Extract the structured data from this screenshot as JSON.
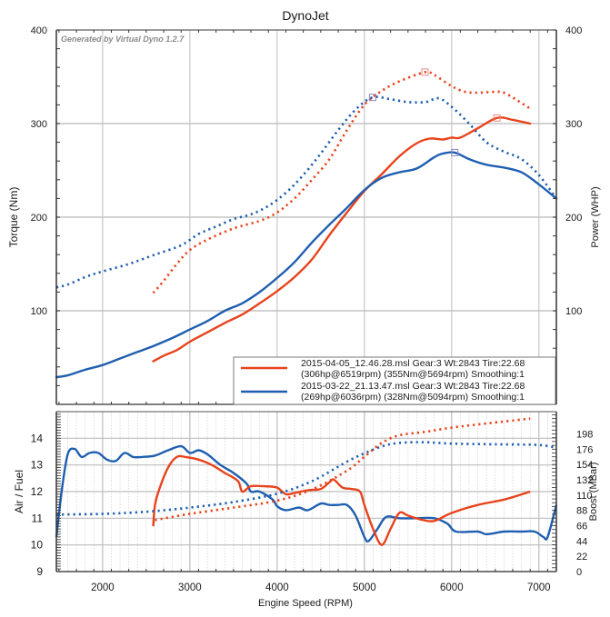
{
  "chart_data": [
    {
      "type": "line",
      "title": "DynoJet",
      "watermark": "Generated by Virtual Dyno 1.2.7",
      "xlabel": "",
      "ylabel": "Torque (Nm)",
      "y2label": "Power (WHP)",
      "xlim": [
        1470,
        7200
      ],
      "ylim": [
        0,
        400
      ],
      "y2lim": [
        0,
        400
      ],
      "x_ticks": [
        2000,
        3000,
        4000,
        5000,
        6000,
        7000
      ],
      "y_ticks": [
        100,
        200,
        300,
        400
      ],
      "y2_ticks": [
        100,
        200,
        300,
        400
      ],
      "grid": true,
      "legend_placement": "bottom-right",
      "legend": [
        {
          "line1": "2015-04-05_12.46.28.msl Gear:3 Wt:2843 Tire:22.68",
          "line2": "(306hp@6519rpm) (355Nm@5694rpm) Smoothing:1",
          "color": "#e8431c"
        },
        {
          "line1": "2015-03-22_21.13.47.msl Gear:3 Wt:2843 Tire:22.68",
          "line2": "(269hp@6036rpm) (328Nm@5094rpm) Smoothing:1",
          "color": "#1f5fb0"
        }
      ],
      "series": [
        {
          "name": "2015-04-05 Torque (Nm)",
          "color": "#e8431c",
          "style": "dotted",
          "axis": "left",
          "x": [
            2580,
            2700,
            2850,
            3000,
            3200,
            3500,
            3800,
            4000,
            4200,
            4400,
            4600,
            4800,
            5000,
            5200,
            5400,
            5694,
            5800,
            6000,
            6150,
            6300,
            6500,
            6600,
            6750,
            6900
          ],
          "y": [
            119,
            132,
            150,
            165,
            176,
            188,
            196,
            205,
            220,
            240,
            262,
            293,
            320,
            335,
            345,
            355,
            352,
            340,
            334,
            333,
            334,
            333,
            325,
            316
          ],
          "peak": {
            "x": 5694,
            "y": 355
          }
        },
        {
          "name": "2015-03-22 Torque (Nm)",
          "color": "#1f5fb0",
          "style": "dotted",
          "axis": "left",
          "x": [
            1470,
            1600,
            1800,
            2000,
            2300,
            2600,
            2900,
            3100,
            3300,
            3500,
            3700,
            3900,
            4100,
            4300,
            4500,
            4700,
            4900,
            5094,
            5300,
            5500,
            5700,
            5850,
            6000,
            6200,
            6400,
            6600,
            6800,
            7000,
            7200
          ],
          "y": [
            125,
            128,
            136,
            142,
            150,
            160,
            170,
            182,
            190,
            198,
            203,
            212,
            226,
            245,
            268,
            293,
            315,
            328,
            326,
            323,
            323,
            327,
            318,
            300,
            280,
            270,
            262,
            245,
            220
          ],
          "peak": {
            "x": 5094,
            "y": 328
          }
        },
        {
          "name": "2015-04-05 Power (WHP)",
          "color": "#e8431c",
          "style": "solid",
          "axis": "right",
          "x": [
            2580,
            2700,
            2850,
            3000,
            3200,
            3400,
            3600,
            3800,
            4000,
            4200,
            4400,
            4600,
            4800,
            5000,
            5200,
            5400,
            5600,
            5750,
            5900,
            6000,
            6100,
            6300,
            6519,
            6700,
            6900
          ],
          "y": [
            46,
            52,
            58,
            67,
            77,
            87,
            96,
            108,
            121,
            136,
            155,
            181,
            205,
            228,
            246,
            265,
            279,
            284,
            283,
            285,
            285,
            295,
            306,
            304,
            300
          ],
          "peak": {
            "x": 6519,
            "y": 306
          }
        },
        {
          "name": "2015-03-22 Power (WHP)",
          "color": "#1f5fb0",
          "style": "solid",
          "axis": "right",
          "x": [
            1470,
            1600,
            1800,
            2000,
            2200,
            2400,
            2600,
            2800,
            3000,
            3200,
            3400,
            3600,
            3800,
            4000,
            4200,
            4400,
            4600,
            4800,
            5000,
            5200,
            5400,
            5600,
            5800,
            5900,
            6036,
            6200,
            6400,
            6600,
            6800,
            7000,
            7200
          ],
          "y": [
            29,
            31,
            37,
            42,
            49,
            56,
            63,
            71,
            80,
            89,
            100,
            108,
            120,
            135,
            152,
            173,
            192,
            210,
            229,
            242,
            248,
            252,
            264,
            268,
            269,
            262,
            256,
            253,
            248,
            235,
            220
          ],
          "peak": {
            "x": 6036,
            "y": 269
          }
        }
      ]
    },
    {
      "type": "line",
      "title": "",
      "xlabel": "Engine Speed (RPM)",
      "ylabel": "Air / Fuel",
      "y2label": "Boost (MBar)",
      "xlim": [
        1470,
        7200
      ],
      "ylim": [
        9,
        15
      ],
      "y2lim": [
        0,
        230
      ],
      "x_ticks": [
        2000,
        3000,
        4000,
        5000,
        6000,
        7000
      ],
      "y_ticks": [
        9,
        10,
        11,
        12,
        13,
        14
      ],
      "y2_ticks": [
        0,
        22,
        44,
        66,
        88,
        110,
        132,
        154,
        176,
        198
      ],
      "grid": true,
      "series": [
        {
          "name": "2015-03-22 Air/Fuel",
          "color": "#1f5fb0",
          "style": "solid",
          "axis": "left",
          "x": [
            1470,
            1530,
            1600,
            1680,
            1760,
            1850,
            1950,
            2050,
            2150,
            2250,
            2350,
            2450,
            2600,
            2750,
            2900,
            3000,
            3100,
            3200,
            3350,
            3500,
            3650,
            3700,
            3800,
            3950,
            4000,
            4100,
            4250,
            4350,
            4500,
            4600,
            4700,
            4800,
            4900,
            5000,
            5050,
            5150,
            5250,
            5400,
            5600,
            5800,
            5950,
            6050,
            6300,
            6400,
            6600,
            6800,
            6950,
            7050,
            7100,
            7200
          ],
          "y": [
            10.3,
            12.0,
            13.4,
            13.6,
            13.3,
            13.45,
            13.45,
            13.2,
            13.15,
            13.45,
            13.3,
            13.3,
            13.35,
            13.55,
            13.7,
            13.45,
            13.55,
            13.4,
            13.0,
            12.7,
            12.3,
            12.0,
            12.0,
            11.7,
            11.45,
            11.3,
            11.4,
            11.3,
            11.55,
            11.5,
            11.5,
            11.5,
            11.1,
            10.3,
            10.15,
            10.6,
            11.05,
            11.0,
            11.0,
            11.0,
            10.8,
            10.5,
            10.5,
            10.4,
            10.5,
            10.5,
            10.5,
            10.3,
            10.3,
            11.5
          ]
        },
        {
          "name": "2015-04-05 Air/Fuel",
          "color": "#e8431c",
          "style": "solid",
          "axis": "left",
          "x": [
            2580,
            2600,
            2650,
            2750,
            2850,
            2950,
            3100,
            3250,
            3400,
            3550,
            3600,
            3700,
            3850,
            4000,
            4100,
            4200,
            4350,
            4500,
            4600,
            4650,
            4750,
            4850,
            4950,
            5000,
            5100,
            5200,
            5300,
            5400,
            5500,
            5650,
            5800,
            6000,
            6300,
            6600,
            6900
          ],
          "y": [
            10.7,
            11.5,
            12.1,
            12.9,
            13.3,
            13.3,
            13.2,
            13.0,
            12.7,
            12.4,
            12.0,
            12.2,
            12.2,
            12.15,
            11.9,
            11.95,
            12.05,
            12.1,
            12.35,
            12.45,
            12.15,
            12.1,
            12.0,
            11.5,
            10.6,
            10.0,
            10.6,
            11.2,
            11.1,
            10.95,
            10.9,
            11.2,
            11.5,
            11.7,
            12.0
          ]
        },
        {
          "name": "2015-03-22 Boost (MBar)",
          "color": "#1f5fb0",
          "style": "dotted",
          "axis": "right",
          "x": [
            1470,
            2000,
            2500,
            3000,
            3500,
            4000,
            4400,
            4800,
            5000,
            5200,
            5400,
            5700,
            6000,
            6500,
            7000,
            7200
          ],
          "y": [
            82,
            83,
            86,
            92,
            100,
            112,
            130,
            158,
            170,
            180,
            185,
            186,
            184,
            183,
            182,
            178
          ]
        },
        {
          "name": "2015-04-05 Boost (MBar)",
          "color": "#e8431c",
          "style": "dotted",
          "axis": "right",
          "x": [
            2600,
            3000,
            3500,
            4000,
            4400,
            4800,
            5000,
            5200,
            5400,
            5700,
            6000,
            6400,
            6900
          ],
          "y": [
            74,
            83,
            92,
            102,
            118,
            145,
            165,
            185,
            196,
            201,
            207,
            213,
            220
          ]
        }
      ]
    }
  ]
}
